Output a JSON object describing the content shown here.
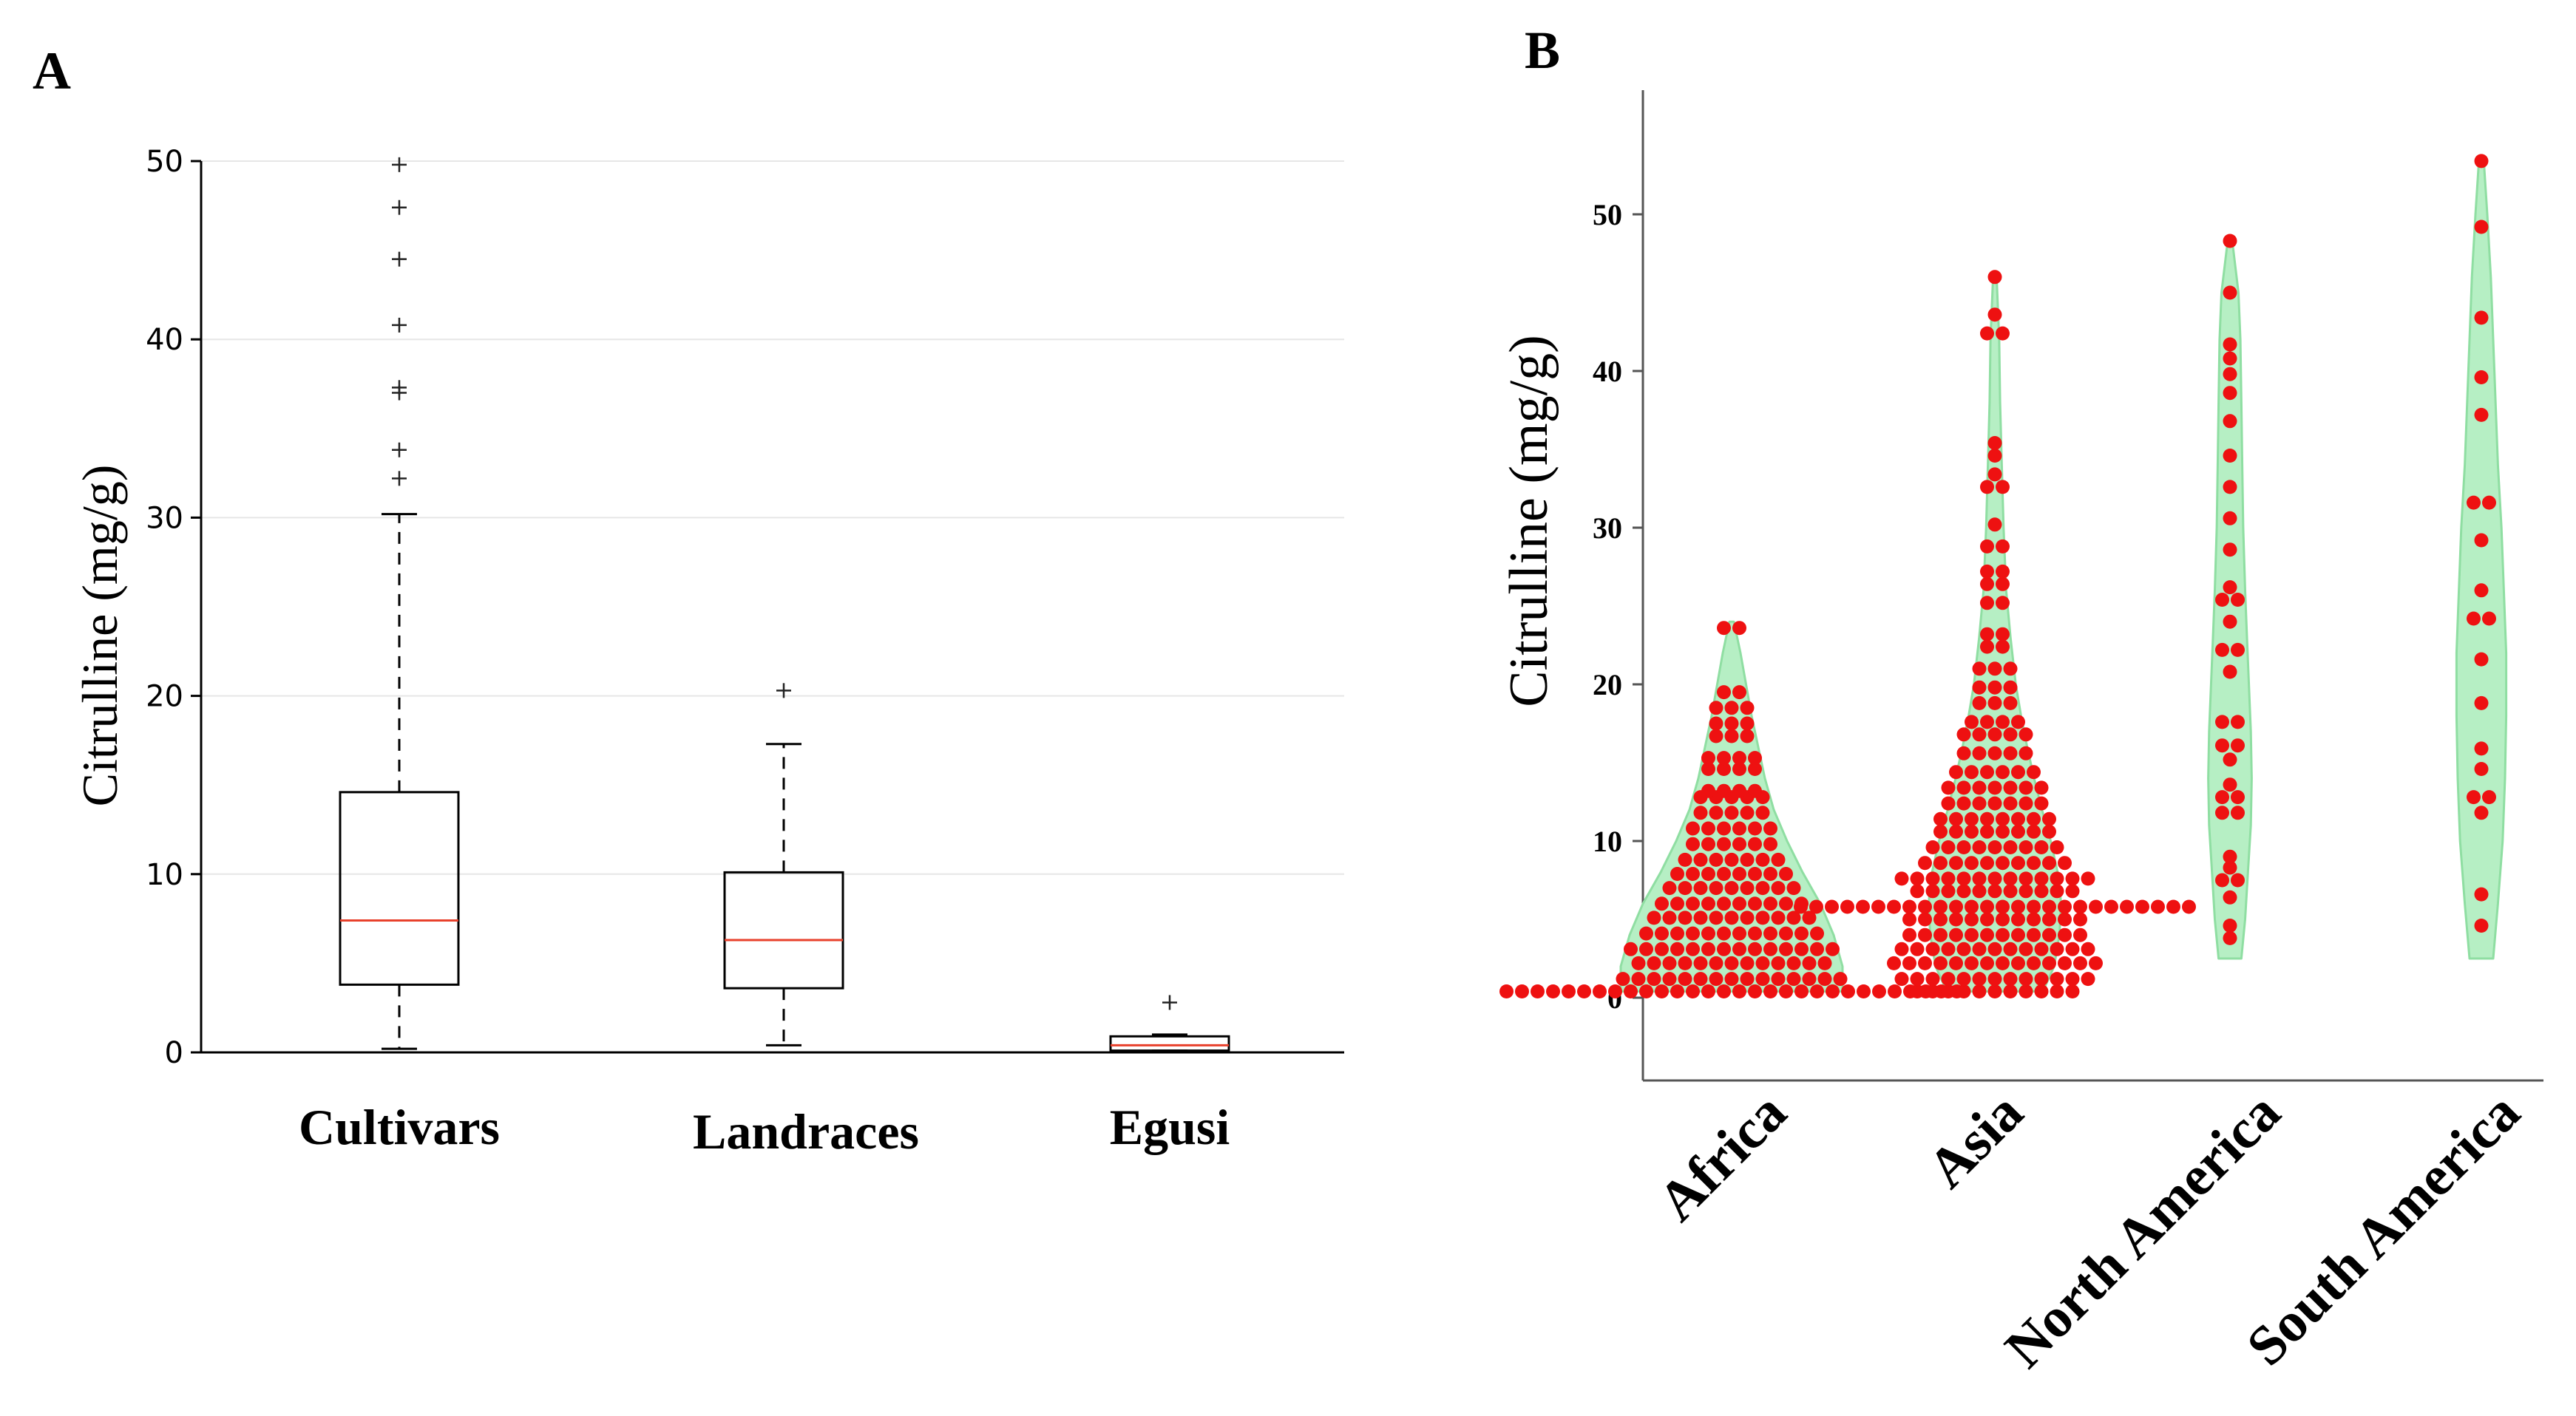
{
  "panels": {
    "A": {
      "letter": "A",
      "chart_data": {
        "type": "box",
        "title": "",
        "xlabel": "",
        "ylabel": "Citrulline (mg/g)",
        "ylim": [
          0,
          50
        ],
        "yticks": [
          0,
          10,
          20,
          30,
          40,
          50
        ],
        "grid": "horizontal",
        "colors": {
          "median": "#e8412c",
          "box": "#000000",
          "grid": "#e6e6e6"
        },
        "categories": [
          "Cultivars",
          "Landraces",
          "Egusi"
        ],
        "boxes": [
          {
            "name": "Cultivars",
            "min": 0.2,
            "q1": 3.8,
            "median": 7.4,
            "q3": 14.6,
            "max": 30.2,
            "outliers": [
              32.2,
              33.8,
              37.0,
              37.3,
              40.8,
              44.5,
              47.4,
              49.8
            ]
          },
          {
            "name": "Landraces",
            "min": 0.4,
            "q1": 3.6,
            "median": 6.3,
            "q3": 10.1,
            "max": 17.3,
            "outliers": [
              20.3
            ]
          },
          {
            "name": "Egusi",
            "min": 0.1,
            "q1": 0.1,
            "median": 0.4,
            "q3": 0.9,
            "max": 1.0,
            "outliers": [
              2.8
            ]
          }
        ]
      }
    },
    "B": {
      "letter": "B",
      "chart_data": {
        "type": "violin-swarm",
        "title": "",
        "xlabel": "",
        "ylabel": "Citrulline (mg/g)",
        "ylim": [
          -5,
          58
        ],
        "yticks": [
          0,
          10,
          20,
          30,
          40,
          50
        ],
        "colors": {
          "violin": "#b6efc4",
          "violin_edge": "#8fdea2",
          "point": "#ee1111"
        },
        "categories": [
          "Africa",
          "Asia",
          "North America",
          "South America"
        ],
        "series": [
          {
            "name": "Africa",
            "violin": {
              "lo": 0.4,
              "hi": 24.0,
              "shape": [
                [
                  0.4,
                  1.0
                ],
                [
                  2.0,
                  1.0
                ],
                [
                  4.0,
                  0.92
                ],
                [
                  6.0,
                  0.8
                ],
                [
                  8.0,
                  0.64
                ],
                [
                  10.0,
                  0.5
                ],
                [
                  12.0,
                  0.38
                ],
                [
                  14.0,
                  0.3
                ],
                [
                  16.0,
                  0.24
                ],
                [
                  18.0,
                  0.18
                ],
                [
                  20.0,
                  0.13
                ],
                [
                  22.0,
                  0.08
                ],
                [
                  24.0,
                  0.02
                ]
              ]
            },
            "points": [
              [
                0.4,
                30
              ],
              [
                1.2,
                15
              ],
              [
                2.2,
                13
              ],
              [
                3.1,
                14
              ],
              [
                4.1,
                12
              ],
              [
                5.1,
                11
              ],
              [
                6.0,
                10
              ],
              [
                7.0,
                9
              ],
              [
                7.9,
                8
              ],
              [
                8.8,
                7
              ],
              [
                9.8,
                6
              ],
              [
                10.8,
                6
              ],
              [
                11.8,
                5
              ],
              [
                12.8,
                5
              ],
              [
                13.2,
                4
              ],
              [
                14.6,
                4
              ],
              [
                15.3,
                4
              ],
              [
                16.7,
                3
              ],
              [
                17.5,
                3
              ],
              [
                18.5,
                3
              ],
              [
                19.5,
                2
              ],
              [
                23.6,
                2
              ]
            ]
          },
          {
            "name": "Asia",
            "violin": {
              "lo": 0.4,
              "hi": 46.0,
              "shape": [
                [
                  0.4,
                  0.55
                ],
                [
                  2.0,
                  0.68
                ],
                [
                  4.0,
                  0.74
                ],
                [
                  6.0,
                  0.76
                ],
                [
                  8.0,
                  0.72
                ],
                [
                  10.0,
                  0.64
                ],
                [
                  12.0,
                  0.54
                ],
                [
                  14.0,
                  0.45
                ],
                [
                  16.0,
                  0.37
                ],
                [
                  18.0,
                  0.3
                ],
                [
                  20.0,
                  0.24
                ],
                [
                  23.0,
                  0.18
                ],
                [
                  26.0,
                  0.13
                ],
                [
                  30.0,
                  0.1
                ],
                [
                  34.0,
                  0.08
                ],
                [
                  38.0,
                  0.06
                ],
                [
                  42.0,
                  0.05
                ],
                [
                  46.0,
                  0.02
                ]
              ]
            },
            "points": [
              [
                0.4,
                11
              ],
              [
                1.2,
                13
              ],
              [
                2.2,
                14
              ],
              [
                3.1,
                13
              ],
              [
                4.0,
                12
              ],
              [
                5.0,
                12
              ],
              [
                5.8,
                26
              ],
              [
                6.8,
                11
              ],
              [
                7.6,
                13
              ],
              [
                8.6,
                10
              ],
              [
                9.6,
                9
              ],
              [
                10.6,
                8
              ],
              [
                11.4,
                8
              ],
              [
                12.4,
                7
              ],
              [
                13.4,
                7
              ],
              [
                14.4,
                6
              ],
              [
                15.6,
                5
              ],
              [
                16.8,
                5
              ],
              [
                17.6,
                4
              ],
              [
                18.8,
                3
              ],
              [
                19.8,
                3
              ],
              [
                21.0,
                3
              ],
              [
                22.4,
                2
              ],
              [
                23.2,
                2
              ],
              [
                25.2,
                2
              ],
              [
                26.4,
                2
              ],
              [
                27.2,
                2
              ],
              [
                28.8,
                2
              ],
              [
                30.2,
                1
              ],
              [
                32.6,
                2
              ],
              [
                33.4,
                1
              ],
              [
                34.6,
                1
              ],
              [
                35.4,
                1
              ],
              [
                42.4,
                2
              ],
              [
                43.6,
                1
              ],
              [
                46.0,
                1
              ]
            ]
          },
          {
            "name": "North America",
            "violin": {
              "lo": 2.5,
              "hi": 48.5,
              "shape": [
                [
                  2.5,
                  0.12
                ],
                [
                  5.0,
                  0.16
                ],
                [
                  8.0,
                  0.19
                ],
                [
                  11.0,
                  0.22
                ],
                [
                  14.0,
                  0.23
                ],
                [
                  17.0,
                  0.22
                ],
                [
                  20.0,
                  0.2
                ],
                [
                  23.0,
                  0.18
                ],
                [
                  26.0,
                  0.16
                ],
                [
                  30.0,
                  0.14
                ],
                [
                  34.0,
                  0.13
                ],
                [
                  38.0,
                  0.12
                ],
                [
                  42.0,
                  0.11
                ],
                [
                  45.0,
                  0.09
                ],
                [
                  48.5,
                  0.02
                ]
              ]
            },
            "points": [
              [
                3.8,
                1
              ],
              [
                4.6,
                1
              ],
              [
                6.4,
                1
              ],
              [
                7.5,
                2
              ],
              [
                8.3,
                1
              ],
              [
                9.0,
                1
              ],
              [
                11.8,
                2
              ],
              [
                12.8,
                2
              ],
              [
                13.6,
                1
              ],
              [
                15.2,
                1
              ],
              [
                16.1,
                2
              ],
              [
                17.6,
                2
              ],
              [
                20.8,
                1
              ],
              [
                22.2,
                2
              ],
              [
                24.0,
                1
              ],
              [
                25.4,
                2
              ],
              [
                26.2,
                1
              ],
              [
                28.6,
                1
              ],
              [
                30.6,
                1
              ],
              [
                32.6,
                1
              ],
              [
                34.6,
                1
              ],
              [
                36.8,
                1
              ],
              [
                38.6,
                1
              ],
              [
                39.8,
                1
              ],
              [
                40.8,
                1
              ],
              [
                41.7,
                1
              ],
              [
                45.0,
                1
              ],
              [
                48.3,
                1
              ]
            ]
          },
          {
            "name": "South America",
            "violin": {
              "lo": 2.5,
              "hi": 53.5,
              "shape": [
                [
                  2.5,
                  0.1
                ],
                [
                  6.0,
                  0.14
                ],
                [
                  10.0,
                  0.18
                ],
                [
                  14.0,
                  0.2
                ],
                [
                  18.0,
                  0.21
                ],
                [
                  22.0,
                  0.21
                ],
                [
                  26.0,
                  0.19
                ],
                [
                  30.0,
                  0.17
                ],
                [
                  34.0,
                  0.14
                ],
                [
                  38.0,
                  0.12
                ],
                [
                  42.0,
                  0.1
                ],
                [
                  46.0,
                  0.08
                ],
                [
                  50.0,
                  0.05
                ],
                [
                  53.5,
                  0.02
                ]
              ]
            },
            "points": [
              [
                4.6,
                1
              ],
              [
                6.6,
                1
              ],
              [
                11.8,
                1
              ],
              [
                12.8,
                2
              ],
              [
                14.6,
                1
              ],
              [
                15.9,
                1
              ],
              [
                18.8,
                1
              ],
              [
                21.6,
                1
              ],
              [
                24.2,
                2
              ],
              [
                26.0,
                1
              ],
              [
                29.2,
                1
              ],
              [
                31.6,
                2
              ],
              [
                37.2,
                1
              ],
              [
                39.6,
                1
              ],
              [
                43.4,
                1
              ],
              [
                49.2,
                1
              ],
              [
                53.4,
                1
              ]
            ]
          }
        ]
      }
    }
  }
}
